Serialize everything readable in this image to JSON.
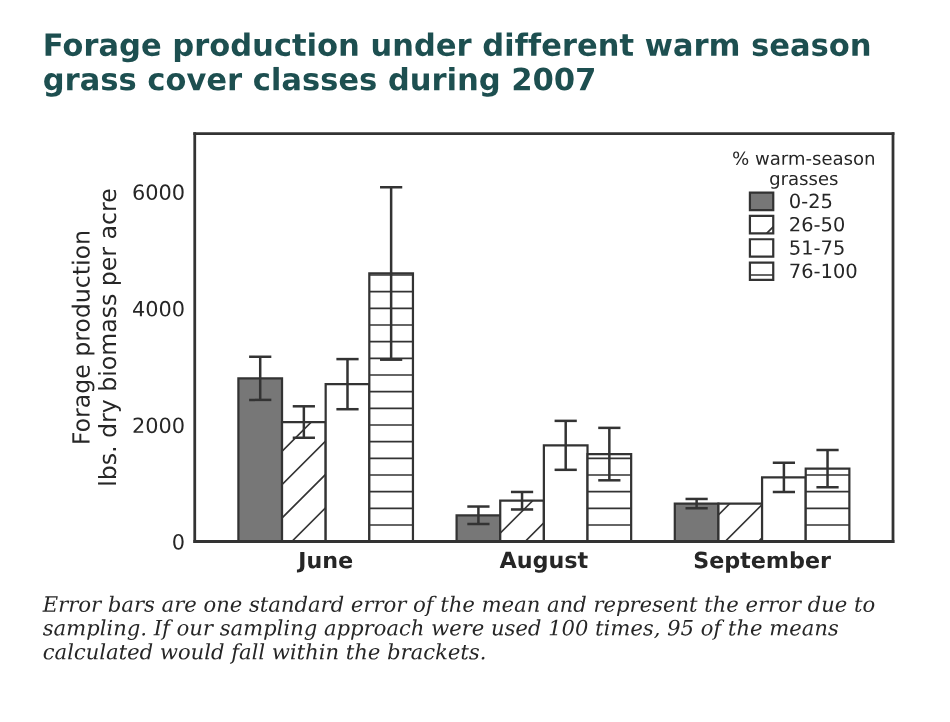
{
  "chart_data": {
    "type": "bar",
    "title": "Forage production under different warm season grass cover classes during 2007",
    "ylabel": "Forage production\nlbs. dry biomass per acre",
    "legend_title": "% warm-season\ngrasses",
    "categories": [
      "June",
      "August",
      "September"
    ],
    "series": [
      {
        "name": "0-25",
        "color": "#777777",
        "values": [
          2800,
          450,
          650
        ],
        "errors": [
          370,
          150,
          80
        ]
      },
      {
        "name": "26-50",
        "color": "#ffffff",
        "values": [
          2050,
          700,
          650
        ],
        "errors": [
          270,
          150,
          null
        ]
      },
      {
        "name": "51-75",
        "color": "#ffffff",
        "values": [
          2700,
          1650,
          1100
        ],
        "errors": [
          430,
          420,
          250
        ]
      },
      {
        "name": "76-100",
        "color": "#ffffff",
        "values": [
          4600,
          1500,
          1250
        ],
        "errors": [
          1480,
          450,
          320
        ]
      }
    ],
    "ylim": [
      0,
      7000
    ],
    "yticks": [
      0,
      2000,
      4000,
      6000
    ],
    "grid": false,
    "legend": "top right",
    "annotations": [
      "Error bars are one standard error of the mean and represent the error due to sampling. If our sampling approach were used 100 times, 95 of the means calculated would fall within the brackets."
    ]
  }
}
